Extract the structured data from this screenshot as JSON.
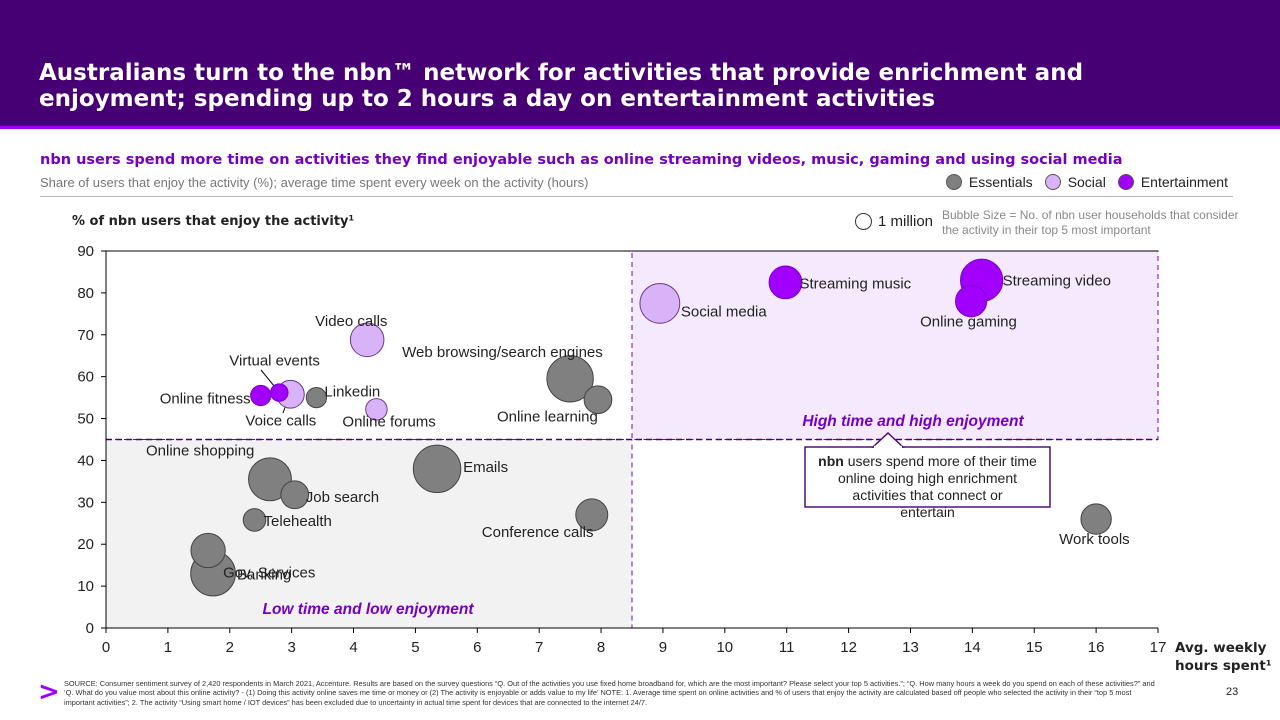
{
  "header": {
    "title": "Australians turn to the nbn™ network for activities that provide enrichment and enjoyment; spending up to 2 hours a day on entertainment activities"
  },
  "subtitle": "nbn users spend more time on activities they find enjoyable such as online streaming videos, music, gaming and using social media",
  "caption": "Share of users that enjoy the activity (%); average time spent every week on the activity (hours)",
  "legend": {
    "items": [
      {
        "label": "Essentials",
        "color": "#808080"
      },
      {
        "label": "Social",
        "color": "#d8b3f8"
      },
      {
        "label": "Entertainment",
        "color": "#a100ff"
      }
    ]
  },
  "size_key": {
    "label": "1 million",
    "note": "Bubble Size = No. of nbn user households that consider the activity in their top 5 most important"
  },
  "chart_data": {
    "type": "scatter",
    "subtype": "bubble",
    "ylabel": "% of nbn users that enjoy the activity¹",
    "xlabel": "Avg. weekly hours spent¹",
    "xlim": [
      0,
      17
    ],
    "ylim": [
      0,
      90
    ],
    "xticks": [
      0,
      1,
      2,
      3,
      4,
      5,
      6,
      7,
      8,
      9,
      10,
      11,
      12,
      13,
      14,
      15,
      16,
      17
    ],
    "yticks": [
      0,
      10,
      20,
      30,
      40,
      50,
      60,
      70,
      80,
      90
    ],
    "grid": false,
    "colors": {
      "Essentials": "#808080",
      "Social": "#d8b3f8",
      "Entertainment": "#a100ff"
    },
    "points": [
      {
        "label": "Online fitness",
        "x": 2.5,
        "y": 55.5,
        "category": "Entertainment",
        "size": 0.4
      },
      {
        "label": "Virtual events",
        "x": 2.8,
        "y": 56.2,
        "category": "Entertainment",
        "size": 0.3
      },
      {
        "label": "Voice calls",
        "x": 2.98,
        "y": 55.8,
        "category": "Social",
        "size": 0.75
      },
      {
        "label": "Linkedin",
        "x": 3.4,
        "y": 55.0,
        "category": "Essentials",
        "size": 0.4
      },
      {
        "label": "Video calls",
        "x": 4.22,
        "y": 68.8,
        "category": "Social",
        "size": 1.1
      },
      {
        "label": "Online forums",
        "x": 4.37,
        "y": 52.2,
        "category": "Social",
        "size": 0.45
      },
      {
        "label": "Web browsing/search engines",
        "x": 7.5,
        "y": 59.5,
        "category": "Essentials",
        "size": 2.1
      },
      {
        "label": "Online learning",
        "x": 7.95,
        "y": 54.5,
        "category": "Essentials",
        "size": 0.75
      },
      {
        "label": "Online shopping",
        "x": 2.65,
        "y": 35.5,
        "category": "Essentials",
        "size": 1.8
      },
      {
        "label": "Job search",
        "x": 3.05,
        "y": 31.8,
        "category": "Essentials",
        "size": 0.75
      },
      {
        "label": "Telehealth",
        "x": 2.4,
        "y": 25.8,
        "category": "Essentials",
        "size": 0.5
      },
      {
        "label": "Gov. Services",
        "x": 1.65,
        "y": 18.5,
        "category": "Essentials",
        "size": 1.15
      },
      {
        "label": "Banking",
        "x": 1.73,
        "y": 13.0,
        "category": "Essentials",
        "size": 1.95
      },
      {
        "label": "Emails",
        "x": 5.35,
        "y": 38.0,
        "category": "Essentials",
        "size": 2.2
      },
      {
        "label": "Conference calls",
        "x": 7.85,
        "y": 27.0,
        "category": "Essentials",
        "size": 1.0
      },
      {
        "label": "Social media",
        "x": 8.95,
        "y": 77.5,
        "category": "Social",
        "size": 1.55
      },
      {
        "label": "Streaming music",
        "x": 10.98,
        "y": 82.5,
        "category": "Entertainment",
        "size": 1.05
      },
      {
        "label": "Streaming video",
        "x": 14.15,
        "y": 83.0,
        "category": "Entertainment",
        "size": 1.75
      },
      {
        "label": "Online gaming",
        "x": 13.98,
        "y": 78.0,
        "category": "Entertainment",
        "size": 0.95
      },
      {
        "label": "Work tools",
        "x": 16.0,
        "y": 26.0,
        "category": "Essentials",
        "size": 0.9
      }
    ],
    "quadrants": {
      "low": {
        "label": "Low time and low enjoyment",
        "x": [
          0,
          8.5
        ],
        "y": [
          0,
          45
        ]
      },
      "high": {
        "label": "High time and high enjoyment",
        "x": [
          8.5,
          17
        ],
        "y": [
          45,
          90
        ]
      }
    },
    "annotation": {
      "bold": "nbn",
      "text": " users spend more of their time online doing high enrichment activities that connect or entertain"
    }
  },
  "footer": {
    "source": "SOURCE: Consumer sentiment survey of 2,420 respondents in March 2021, Accenture. Results are based on the survey questions “Q. Out of the activities you use fixed home broadband for, which are the most important? Please select your top 5 activities.”; “Q. How many hours a week do you spend on each of these activities?” and ‘Q. What do you value most about this online activity? - (1) Doing this activity online saves me time or money or (2) The activity is enjoyable or adds value to my life’ NOTE: 1. Average time spent on online activities and % of users that enjoy the activity are calculated based off people who selected the activity in their “top 5 most important activities”; 2. The activity “Using smart home / IOT devices” has been excluded due to uncertainty in actual time spent for devices that are connected to the internet 24/7.",
    "page_number": "23",
    "logo": ">"
  }
}
